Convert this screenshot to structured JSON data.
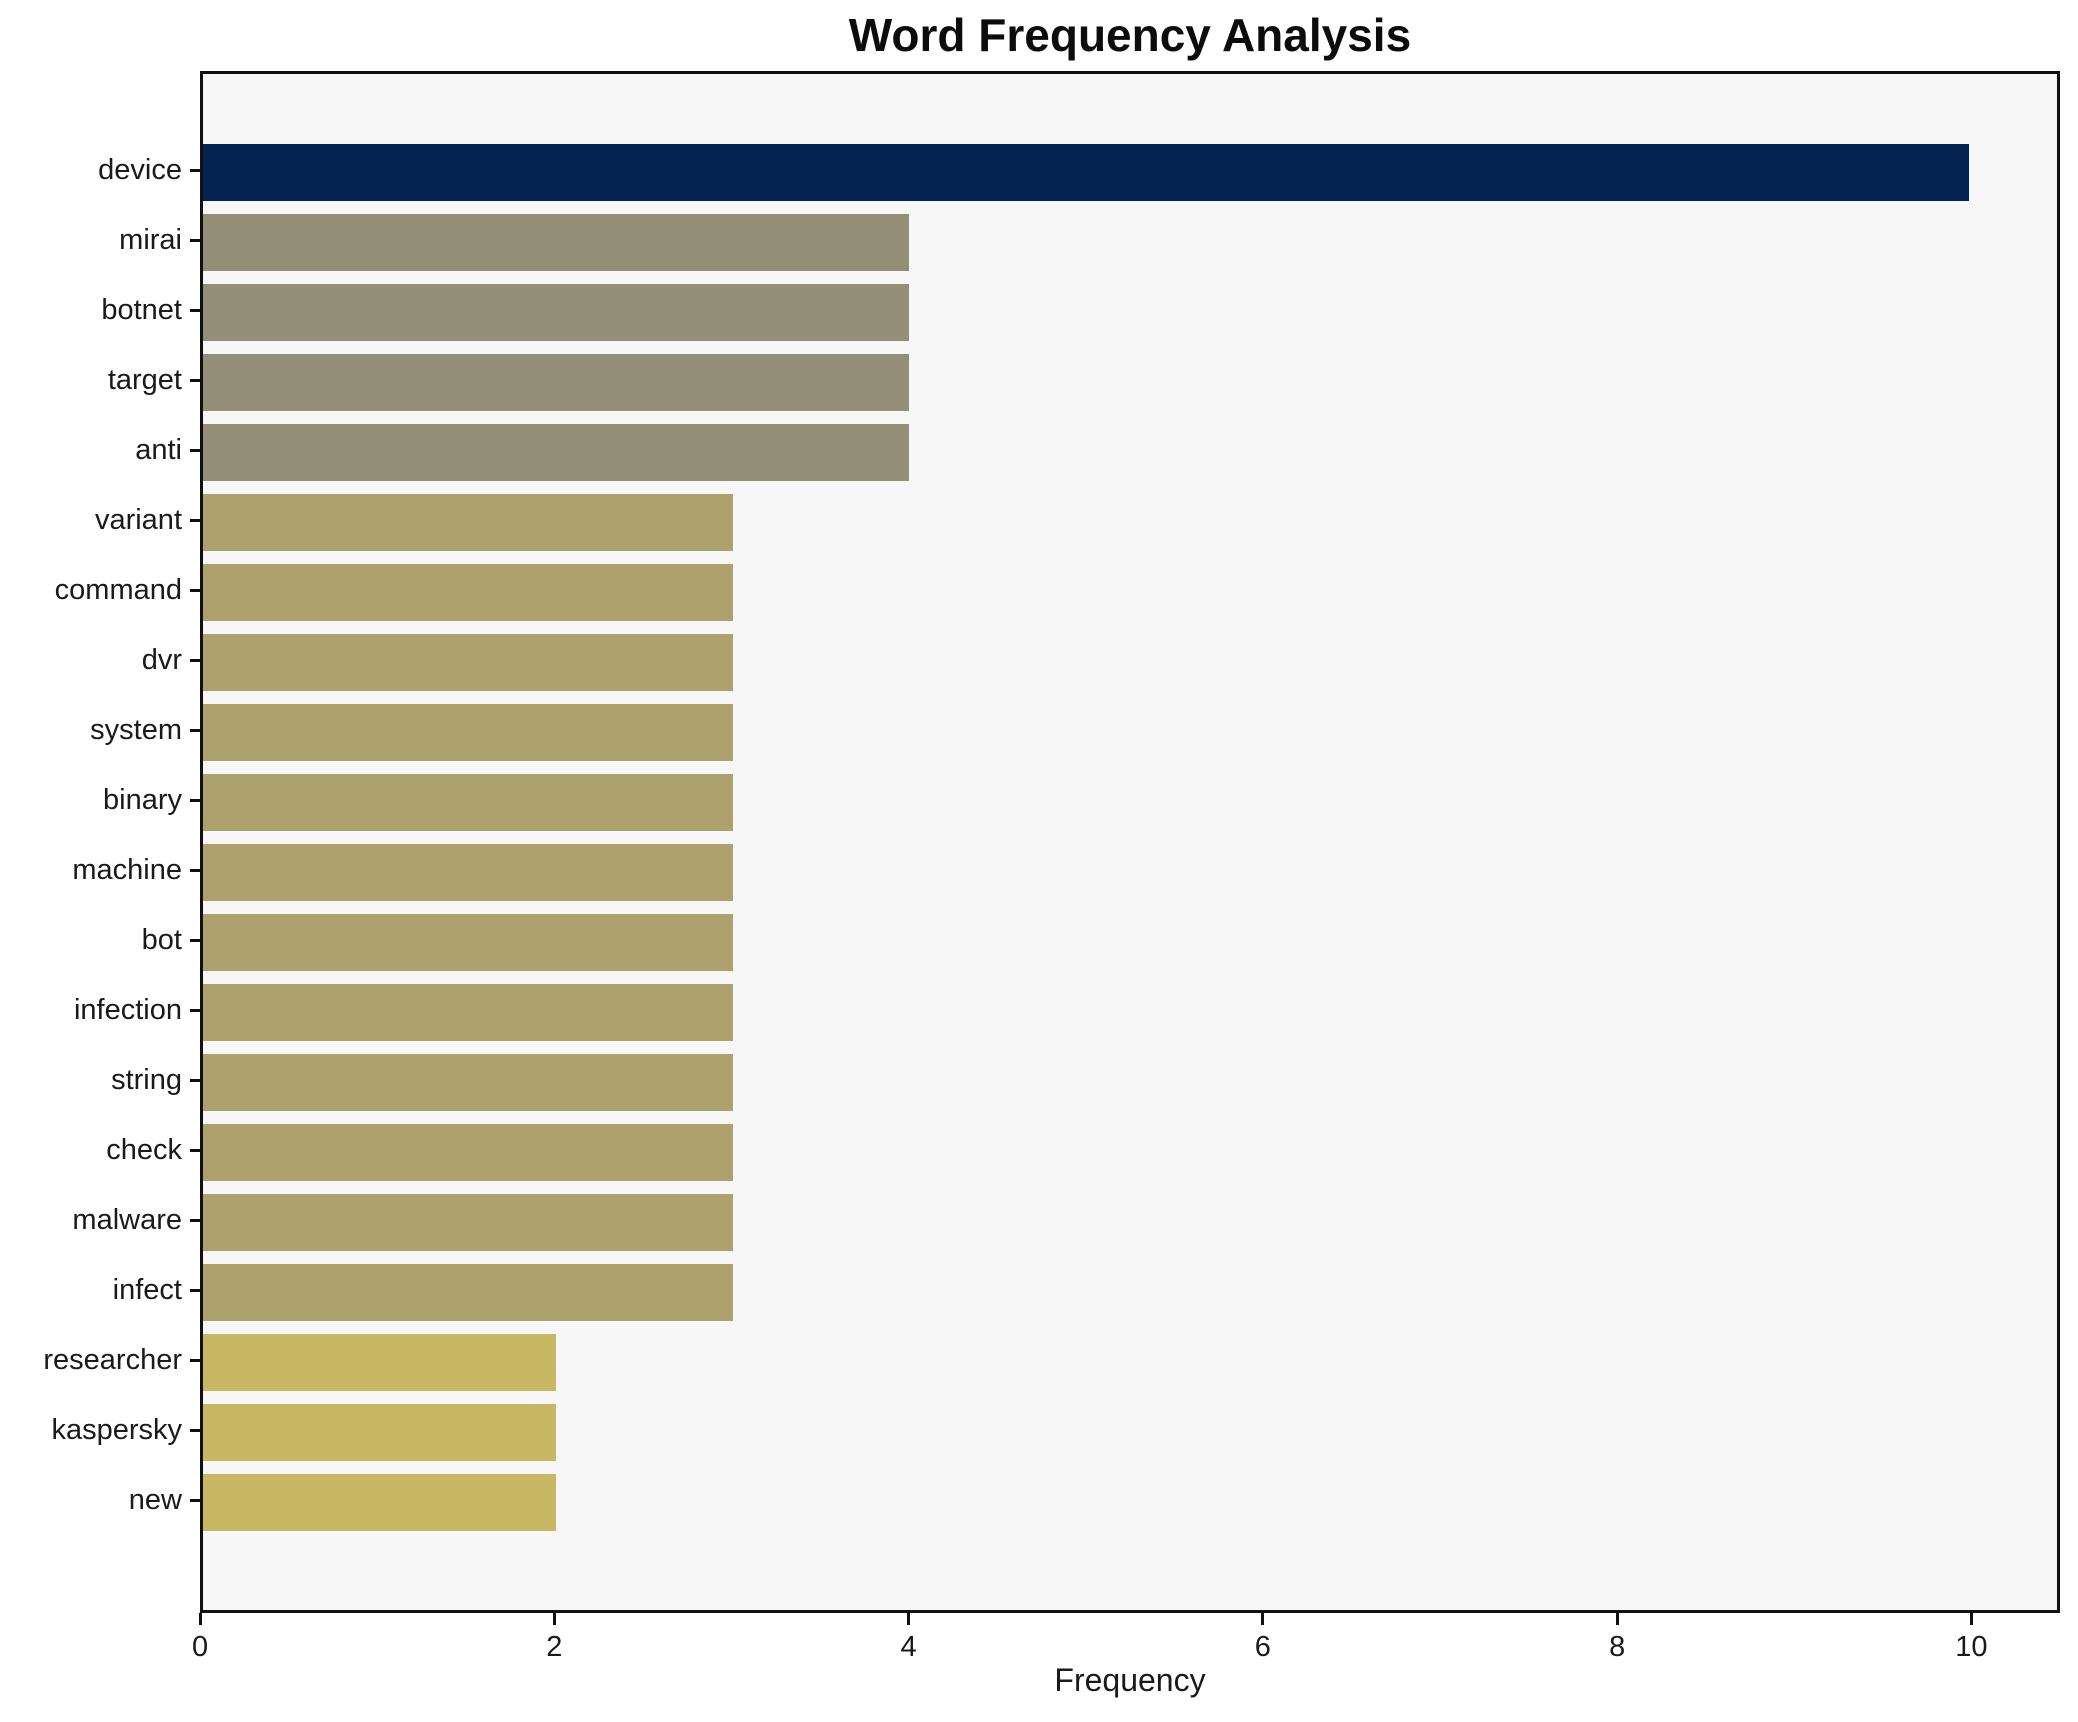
{
  "title": "Word Frequency Analysis",
  "colors": {
    "figure_background": "#ffffff",
    "plot_background": "#f7f7f8",
    "frame": "#101010",
    "text": "#1a1a1a",
    "bar_value_10": "#03224f",
    "bar_value_4": "#938e76",
    "bar_value_3": "#ada26e",
    "bar_value_2": "#c8b763"
  },
  "chart_data": {
    "type": "bar",
    "orientation": "horizontal",
    "title": "Word Frequency Analysis",
    "xlabel": "Frequency",
    "ylabel": "",
    "xlim": [
      0,
      10.5
    ],
    "xticks": [
      0,
      2,
      4,
      6,
      8,
      10
    ],
    "grid": false,
    "legend_position": "none",
    "bar_height_fraction": 0.8,
    "categories": [
      "device",
      "mirai",
      "botnet",
      "target",
      "anti",
      "variant",
      "command",
      "dvr",
      "system",
      "binary",
      "machine",
      "bot",
      "infection",
      "string",
      "check",
      "malware",
      "infect",
      "researcher",
      "kaspersky",
      "new"
    ],
    "values": [
      10,
      4,
      4,
      4,
      4,
      3,
      3,
      3,
      3,
      3,
      3,
      3,
      3,
      3,
      3,
      3,
      3,
      2,
      2,
      2
    ],
    "bar_colors": [
      "#03224f",
      "#938e76",
      "#938e76",
      "#938e76",
      "#938e76",
      "#ada26e",
      "#ada26e",
      "#ada26e",
      "#ada26e",
      "#ada26e",
      "#ada26e",
      "#ada26e",
      "#ada26e",
      "#ada26e",
      "#ada26e",
      "#ada26e",
      "#ada26e",
      "#c8b763",
      "#c8b763",
      "#c8b763"
    ]
  }
}
